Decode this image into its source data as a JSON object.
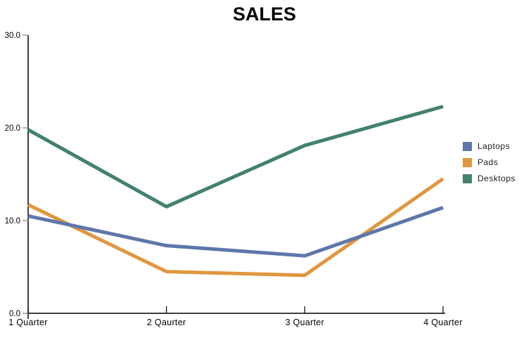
{
  "chart_data": {
    "type": "line",
    "title": "SALES",
    "xlabel": "",
    "ylabel": "",
    "categories": [
      "1 Quarter",
      "2 Qaurter",
      "3 Quarter",
      "4 Quarter"
    ],
    "series": [
      {
        "name": "Laptops",
        "color": "#5E76AB",
        "values": [
          10.5,
          7.3,
          6.2,
          11.4
        ]
      },
      {
        "name": "Pads",
        "color": "#E0973F",
        "values": [
          11.7,
          4.5,
          4.1,
          14.5
        ]
      },
      {
        "name": "Desktops",
        "color": "#428268",
        "values": [
          19.8,
          11.5,
          18.1,
          22.3
        ]
      }
    ],
    "ylim": [
      0,
      30
    ],
    "yticks": [
      0,
      10,
      20,
      30
    ],
    "ytick_labels": [
      "0.0",
      "10.0",
      "20.0",
      "30.0"
    ],
    "grid": false,
    "legend_position": "right",
    "legend_entries": [
      "Laptops",
      "Pads",
      "Desktops"
    ],
    "axis_color": "#000000",
    "y_tick_color": "#999999",
    "line_width": 5
  }
}
